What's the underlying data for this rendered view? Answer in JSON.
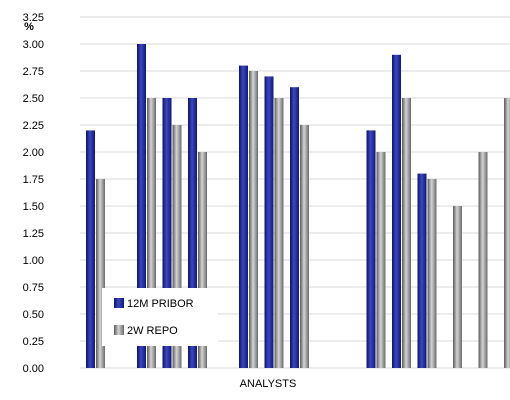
{
  "chart_data": {
    "type": "bar",
    "unit_label": "%",
    "xlabel": "ANALYSTS",
    "ylim": [
      0,
      3.25
    ],
    "y_ticks": [
      "0.00",
      "0.25",
      "0.50",
      "0.75",
      "1.00",
      "1.25",
      "1.50",
      "1.75",
      "2.00",
      "2.25",
      "2.50",
      "2.75",
      "3.00",
      "3.25"
    ],
    "grid": true,
    "legend_position": "bottom-left",
    "categories": [
      "",
      "",
      "",
      "",
      "",
      "",
      "",
      "",
      "",
      "",
      "",
      "",
      "",
      "",
      "",
      "",
      ""
    ],
    "series": [
      {
        "name": "12M PRIBOR",
        "color": "#1f2a8c",
        "values": [
          2.2,
          null,
          3.0,
          2.5,
          2.5,
          null,
          2.8,
          2.7,
          2.6,
          null,
          null,
          2.2,
          2.9,
          1.8,
          null,
          null,
          null
        ]
      },
      {
        "name": "2W REPO",
        "color": "#8c8c8c",
        "values": [
          1.75,
          null,
          2.5,
          2.25,
          2.0,
          null,
          2.75,
          2.5,
          2.25,
          null,
          null,
          2.0,
          2.5,
          1.75,
          1.5,
          2.0,
          2.5
        ]
      }
    ]
  }
}
